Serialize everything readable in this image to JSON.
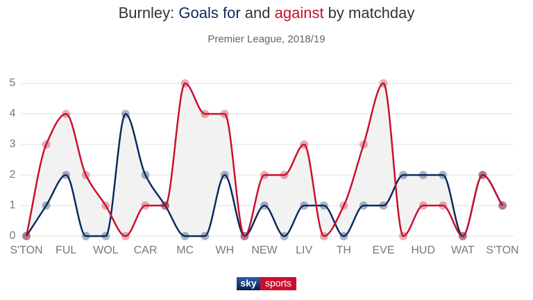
{
  "chart_data": {
    "type": "line",
    "title_parts": [
      "Burnley: ",
      "Goals for",
      " and ",
      "against",
      " by matchday"
    ],
    "subtitle": "Premier League, 2018/19",
    "categories": [
      "S'TON",
      null,
      "FUL",
      null,
      "WOL",
      null,
      "CAR",
      null,
      "MC",
      null,
      "WH",
      null,
      "NEW",
      null,
      "LIV",
      null,
      "TH",
      null,
      "EVE",
      null,
      "HUD",
      null,
      "WAT",
      null,
      "S'TON"
    ],
    "series": [
      {
        "name": "Goals for",
        "color": "#0b2a5e",
        "values": [
          0,
          1,
          2,
          0,
          0,
          4,
          2,
          1,
          0,
          0,
          2,
          0,
          1,
          0,
          1,
          1,
          0,
          1,
          1,
          2,
          2,
          2,
          0,
          2,
          1
        ]
      },
      {
        "name": "against",
        "color": "#c8102e",
        "values": [
          0,
          3,
          4,
          2,
          1,
          0,
          1,
          1,
          5,
          4,
          4,
          0,
          2,
          2,
          3,
          0,
          1,
          3,
          5,
          0,
          1,
          1,
          0,
          2,
          1
        ]
      }
    ],
    "ylim": [
      0,
      5
    ],
    "yticks": [
      0,
      1,
      2,
      3,
      4,
      5
    ],
    "grid": true,
    "logo": [
      "sky",
      "sports"
    ]
  }
}
